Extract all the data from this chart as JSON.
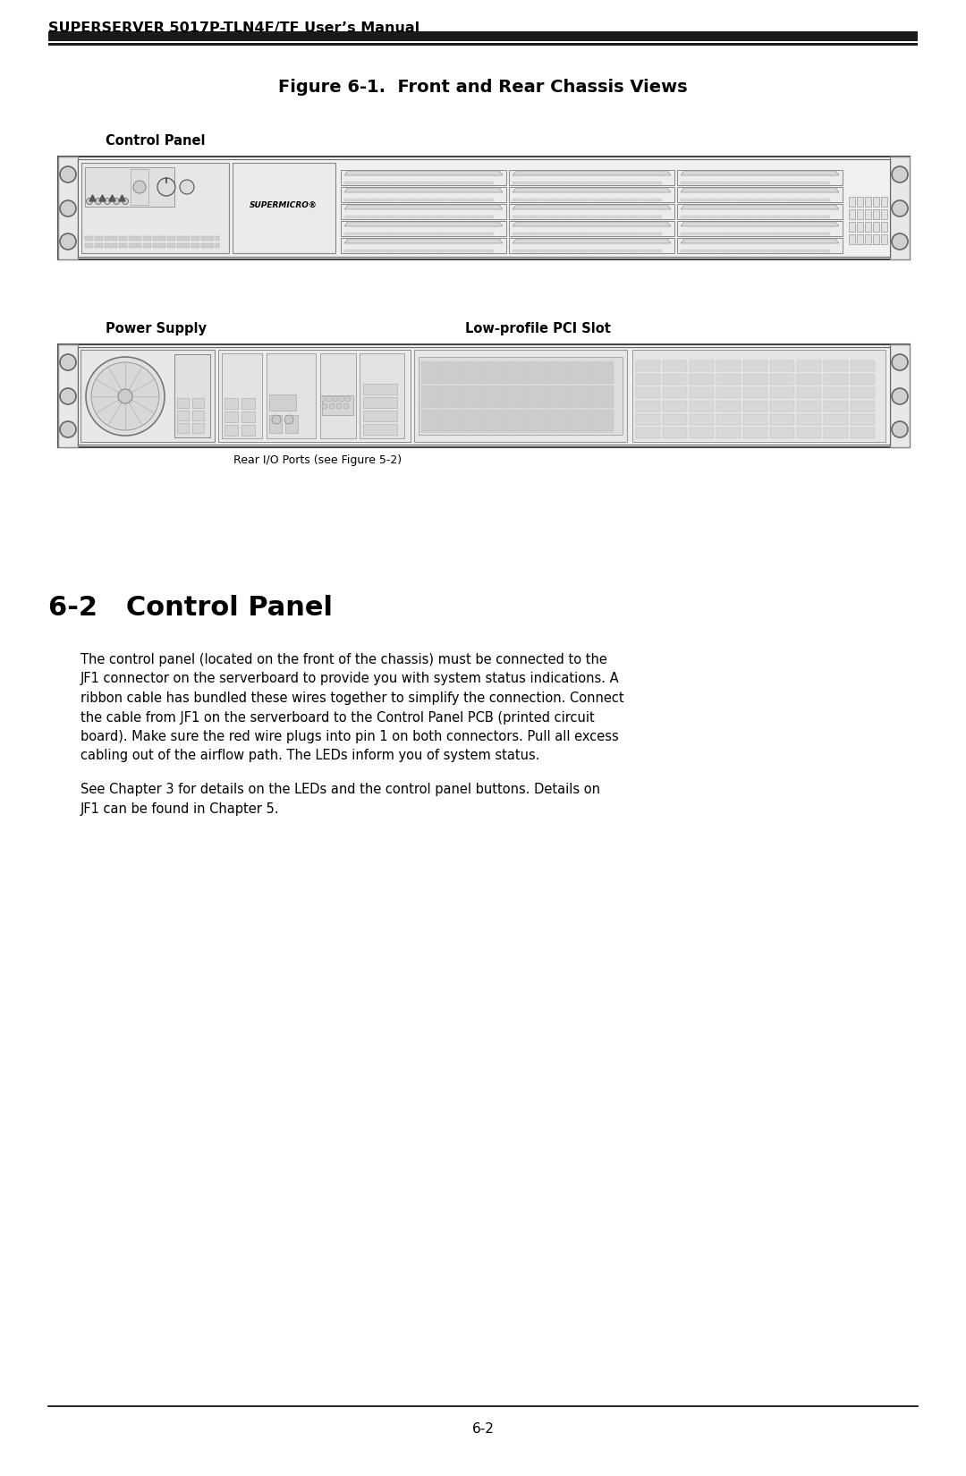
{
  "page_title": "SUPERSERVER 5017P-TLN4F/TF User’s Manual",
  "figure_title": "Figure 6-1.  Front and Rear Chassis Views",
  "section_title": "6-2   Control Panel",
  "label_control_panel": "Control Panel",
  "label_power_supply": "Power Supply",
  "label_low_profile": "Low-profile PCI Slot",
  "label_rear_io": "Rear I/O Ports (see Figure 5-2)",
  "body_text_1_lines": [
    "The control panel (located on the front of the chassis) must be connected to the",
    "JF1 connector on the serverboard to provide you with system status indications. A",
    "ribbon cable has bundled these wires together to simplify the connection. Connect",
    "the cable from JF1 on the serverboard to the Control Panel PCB (printed circuit",
    "board). Make sure the red wire plugs into pin 1 on both connectors. Pull all excess",
    "cabling out of the airflow path. The LEDs inform you of system status."
  ],
  "body_text_2_lines": [
    "See Chapter 3 for details on the LEDs and the control panel buttons. Details on",
    "JF1 can be found in Chapter 5."
  ],
  "page_number": "6-2",
  "bg_color": "#ffffff",
  "text_color": "#000000",
  "header_bar_color": "#1a1a1a",
  "chassis_outer_color": "#cccccc",
  "chassis_inner_color": "#f0f0f0",
  "chassis_ec": "#555555",
  "ear_color": "#e0e0e0"
}
